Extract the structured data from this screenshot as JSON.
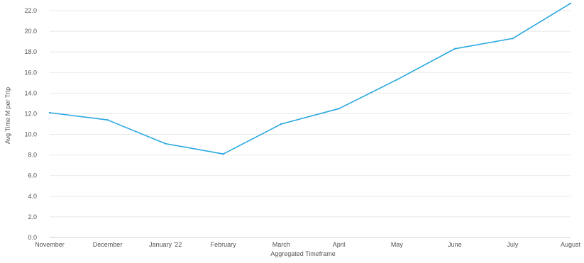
{
  "chart_data": {
    "type": "line",
    "title": "",
    "xlabel": "Aggregated Timeframe",
    "ylabel": "Avg Time M per Trip",
    "categories": [
      "November",
      "December",
      "January '22",
      "February",
      "March",
      "April",
      "May",
      "June",
      "July",
      "August"
    ],
    "series": [
      {
        "values": [
          12.1,
          11.4,
          9.1,
          8.1,
          11.0,
          12.5,
          15.3,
          18.3,
          19.3,
          22.7
        ]
      }
    ],
    "ylim": [
      0,
      22
    ],
    "yticks": [
      "0.0",
      "2.0",
      "4.0",
      "6.0",
      "8.0",
      "10.0",
      "12.0",
      "14.0",
      "16.0",
      "18.0",
      "20.0",
      "22.0"
    ],
    "grid": true,
    "legend": "none",
    "colors": {
      "line": "#29a8e0",
      "grid": "#e8e8e8",
      "axis": "#cfcfcf",
      "text": "#555555"
    }
  }
}
